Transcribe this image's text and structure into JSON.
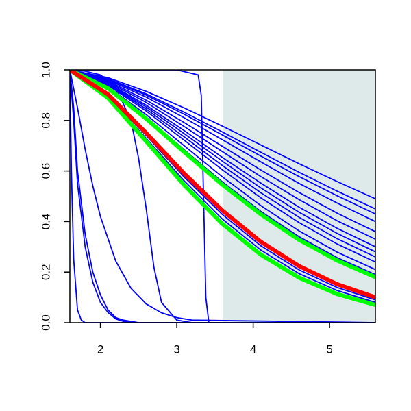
{
  "chart_data": {
    "type": "line",
    "xlim": [
      1.6,
      5.6
    ],
    "ylim": [
      0,
      1
    ],
    "xticks": [
      2,
      3,
      4,
      5
    ],
    "yticks": [
      {
        "value": 0,
        "label": "0.0"
      },
      0.2,
      0.4,
      0.6,
      0.8,
      {
        "value": 1,
        "label": "1.0"
      }
    ],
    "shaded_region": {
      "x": [
        3.6,
        5.6
      ],
      "color": "#deeaea"
    },
    "series": [
      {
        "color": "#0000ff",
        "x": [
          1.6,
          2.1,
          2.6,
          3.1,
          3.6,
          4.1,
          4.6,
          5.1,
          5.6
        ],
        "values": [
          1,
          0.969,
          0.915,
          0.849,
          0.777,
          0.703,
          0.629,
          0.558,
          0.49
        ]
      },
      {
        "color": "#0000ff",
        "x": [
          1.6,
          2.1,
          2.6,
          3.1,
          3.6,
          4.1,
          4.6,
          5.1,
          5.6
        ],
        "values": [
          1,
          0.965,
          0.905,
          0.832,
          0.754,
          0.674,
          0.595,
          0.52,
          0.45
        ]
      },
      {
        "color": "#0000ff",
        "x": [
          1.6,
          2.1,
          2.6,
          3.1,
          3.6,
          4.1,
          4.6,
          5.1,
          5.6
        ],
        "values": [
          1,
          0.963,
          0.9,
          0.824,
          0.742,
          0.659,
          0.578,
          0.502,
          0.43
        ]
      },
      {
        "color": "#0000ff",
        "x": [
          1.6,
          2.1,
          2.6,
          3.1,
          3.6,
          4.1,
          4.6,
          5.1,
          5.6
        ],
        "values": [
          1,
          0.96,
          0.892,
          0.81,
          0.723,
          0.636,
          0.551,
          0.473,
          0.4
        ]
      },
      {
        "color": "#0000ff",
        "x": [
          1.6,
          2.1,
          2.6,
          3.1,
          3.6,
          4.1,
          4.6,
          5.1,
          5.6
        ],
        "values": [
          1,
          0.956,
          0.88,
          0.791,
          0.697,
          0.604,
          0.515,
          0.433,
          0.36
        ]
      },
      {
        "color": "#0000ff",
        "x": [
          1.6,
          2.1,
          2.6,
          3.1,
          3.6,
          4.1,
          4.6,
          5.1,
          5.6
        ],
        "values": [
          1,
          0.952,
          0.871,
          0.775,
          0.676,
          0.578,
          0.487,
          0.403,
          0.33
        ]
      },
      {
        "color": "#0000ff",
        "x": [
          1.6,
          2.1,
          2.6,
          3.1,
          3.6,
          4.1,
          4.6,
          5.1,
          5.6
        ],
        "values": [
          1,
          0.948,
          0.86,
          0.759,
          0.653,
          0.552,
          0.457,
          0.373,
          0.3
        ]
      },
      {
        "color": "#0000ff",
        "x": [
          1.6,
          2.1,
          2.6,
          3.1,
          3.6,
          4.1,
          4.6,
          5.1,
          5.6
        ],
        "values": [
          1,
          0.945,
          0.853,
          0.747,
          0.638,
          0.533,
          0.437,
          0.353,
          0.28
        ]
      },
      {
        "color": "#0000ff",
        "x": [
          1.6,
          2.1,
          2.6,
          3.1,
          3.6,
          4.1,
          4.6,
          5.1,
          5.6
        ],
        "values": [
          1,
          0.942,
          0.845,
          0.734,
          0.621,
          0.514,
          0.417,
          0.332,
          0.26
        ]
      },
      {
        "color": "#0000ff",
        "x": [
          1.6,
          2.1,
          2.6,
          3.1,
          3.6,
          4.1,
          4.6,
          5.1,
          5.6
        ],
        "values": [
          1,
          0.939,
          0.837,
          0.721,
          0.604,
          0.494,
          0.396,
          0.311,
          0.24
        ]
      },
      {
        "color": "#0000ff",
        "x": [
          1.6,
          2.1,
          2.6,
          3.1,
          3.6,
          4.1,
          4.6,
          5.1,
          5.6
        ],
        "values": [
          1,
          0.933,
          0.823,
          0.699,
          0.576,
          0.463,
          0.363,
          0.279,
          0.21
        ]
      },
      {
        "color": "#0000ff",
        "x": [
          1.6,
          2.1,
          2.6,
          3.1,
          3.6,
          4.1,
          4.6,
          5.1,
          5.6
        ],
        "values": [
          1,
          0.929,
          0.813,
          0.683,
          0.556,
          0.44,
          0.34,
          0.257,
          0.19
        ]
      },
      {
        "color": "#0000ff",
        "x": [
          1.6,
          2.1,
          2.6,
          3.1,
          3.6,
          4.1,
          4.6,
          5.1,
          5.6
        ],
        "values": [
          1,
          0.899,
          0.74,
          0.575,
          0.427,
          0.304,
          0.209,
          0.139,
          0.09
        ]
      },
      {
        "color": "#0000ff",
        "x": [
          1.6,
          2.1,
          2.6,
          3.1,
          3.6,
          4.1,
          4.6,
          5.1,
          5.6
        ],
        "values": [
          1,
          0.894,
          0.729,
          0.56,
          0.409,
          0.287,
          0.194,
          0.127,
          0.08
        ]
      },
      {
        "color": "#0000ff",
        "x": [
          1.6,
          1.7,
          2.0,
          3.0,
          3.28,
          3.32,
          3.35,
          3.38,
          3.42,
          5.6
        ],
        "values": [
          1,
          1,
          1,
          1,
          0.98,
          0.9,
          0.5,
          0.1,
          0,
          0
        ]
      },
      {
        "color": "#0000ff",
        "x": [
          1.6,
          1.8,
          2.0,
          2.2,
          2.4,
          2.5,
          2.6,
          2.7,
          2.8,
          3.0,
          3.2,
          5.6
        ],
        "values": [
          1,
          0.995,
          0.98,
          0.93,
          0.8,
          0.65,
          0.45,
          0.22,
          0.08,
          0.01,
          0,
          0
        ]
      },
      {
        "color": "#0000ff",
        "x": [
          1.6,
          1.7,
          1.8,
          1.9,
          2.0,
          2.2,
          2.4,
          2.6,
          2.8,
          3.0,
          3.2,
          5.6
        ],
        "values": [
          1,
          0.85,
          0.686,
          0.541,
          0.42,
          0.244,
          0.136,
          0.074,
          0.039,
          0.02,
          0.01,
          0
        ]
      },
      {
        "color": "#0000ff",
        "x": [
          1.6,
          1.65,
          1.7,
          1.8,
          1.9,
          2.0,
          2.1,
          2.2,
          2.3,
          2.5,
          5.6
        ],
        "values": [
          1,
          0.85,
          0.6,
          0.35,
          0.2,
          0.11,
          0.05,
          0.02,
          0.01,
          0,
          0
        ]
      },
      {
        "color": "#0000ff",
        "x": [
          1.6,
          1.65,
          1.7,
          1.8,
          1.9,
          2.0,
          2.1,
          2.2,
          2.3,
          2.5,
          5.6
        ],
        "values": [
          1,
          0.8,
          0.55,
          0.3,
          0.16,
          0.08,
          0.04,
          0.015,
          0.005,
          0,
          0
        ]
      },
      {
        "color": "#0000ff",
        "x": [
          1.6,
          1.62,
          1.65,
          1.7,
          1.75,
          1.8,
          5.6
        ],
        "values": [
          1,
          0.6,
          0.25,
          0.05,
          0.01,
          0,
          0
        ]
      },
      {
        "color": "#00ff00",
        "x": [
          1.6,
          2.1,
          2.6,
          3.1,
          3.6,
          4.1,
          4.6,
          5.1,
          5.6
        ],
        "values": [
          1,
          0.927,
          0.807,
          0.674,
          0.545,
          0.429,
          0.328,
          0.246,
          0.18
        ]
      },
      {
        "color": "#00ff00",
        "x": [
          1.6,
          2.1,
          2.6,
          3.1,
          3.6,
          4.1,
          4.6,
          5.1,
          5.6
        ],
        "values": [
          1,
          0.889,
          0.717,
          0.543,
          0.39,
          0.269,
          0.178,
          0.113,
          0.07
        ]
      },
      {
        "color": "#ff0000",
        "x": [
          1.6,
          2.1,
          2.6,
          3.1,
          3.6,
          4.1,
          4.6,
          5.1,
          5.6
        ],
        "values": [
          1,
          0.903,
          0.75,
          0.589,
          0.443,
          0.32,
          0.224,
          0.152,
          0.1
        ]
      }
    ]
  }
}
